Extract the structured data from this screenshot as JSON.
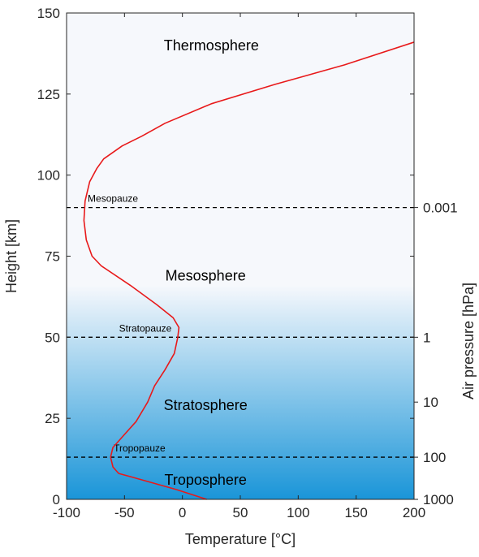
{
  "chart_data": {
    "type": "line",
    "xlabel": "Temperature [°C]",
    "ylabel": "Height  [km]",
    "y2label": "Air pressure  [hPa]",
    "xlim": [
      -100,
      200
    ],
    "ylim": [
      0,
      150
    ],
    "xticks": [
      "-100",
      "-50",
      "0",
      "50",
      "100",
      "150",
      "200"
    ],
    "yticks": [
      "0",
      "25",
      "50",
      "75",
      "100",
      "125",
      "150"
    ],
    "pressure_ticks": [
      {
        "label": "1000",
        "height": 0
      },
      {
        "label": "100",
        "height": 13
      },
      {
        "label": "10",
        "height": 30
      },
      {
        "label": "1",
        "height": 50
      },
      {
        "label": "0.001",
        "height": 90
      }
    ],
    "grid": false,
    "series": [
      {
        "color": "#e8191a",
        "x": [
          21,
          -5,
          -25,
          -45,
          -55,
          -60,
          -62,
          -60,
          -50,
          -40,
          -30,
          -24,
          -15,
          -7,
          -4,
          -3,
          -8,
          -22,
          -45,
          -70,
          -78,
          -83,
          -85,
          -84,
          -80,
          -74,
          -68,
          -52,
          -35,
          -15,
          25,
          80,
          140,
          200
        ],
        "y": [
          0,
          3,
          5,
          7,
          8,
          10,
          13,
          16,
          20,
          24,
          30,
          35,
          40,
          45,
          50,
          53,
          56,
          60,
          66,
          72,
          75,
          80,
          86,
          92,
          98,
          102,
          105,
          109,
          112,
          116,
          122,
          128,
          134,
          141
        ]
      }
    ],
    "layer_labels": [
      {
        "text": "Thermosphere",
        "x": 25,
        "y": 140
      },
      {
        "text": "Mesosphere",
        "x": 20,
        "y": 69
      },
      {
        "text": "Stratosphere",
        "x": 20,
        "y": 29
      },
      {
        "text": "Troposphere",
        "x": 20,
        "y": 6
      }
    ],
    "boundaries": [
      {
        "name": "Mesopauze",
        "height": 90,
        "label_x": -60
      },
      {
        "name": "Stratopauze",
        "height": 50,
        "label_x": -32
      },
      {
        "name": "Tropopauze",
        "height": 13,
        "label_x": -37
      }
    ],
    "background_gradient": {
      "top_color": "#f6f8fc",
      "bottom_color": "#1a95d8"
    }
  }
}
